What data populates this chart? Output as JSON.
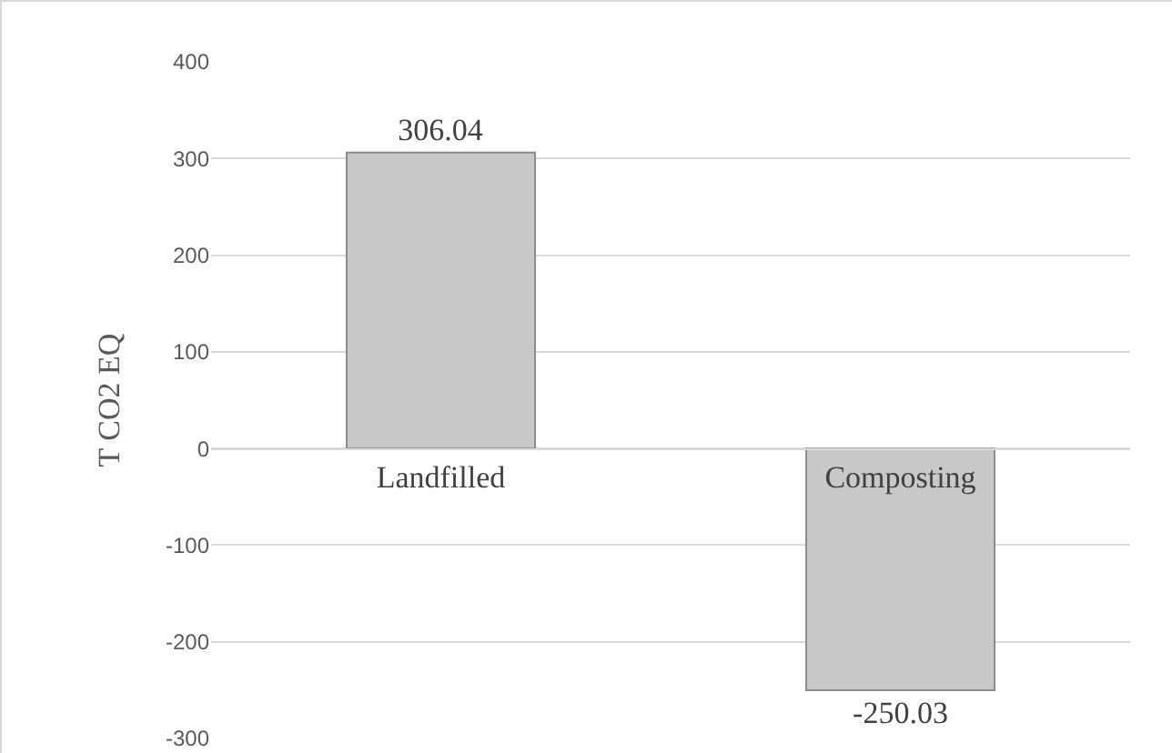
{
  "chart_data": {
    "type": "bar",
    "ylabel": "T CO2 EQ",
    "categories": [
      "Landfilled",
      "Composting"
    ],
    "values": [
      306.04,
      -250.03
    ],
    "color": "#c8c8c8",
    "data_labels": true,
    "ylim": [
      -300,
      400
    ],
    "yticks": [
      -300,
      -200,
      -100,
      0,
      100,
      200,
      300,
      400
    ],
    "grid": "y",
    "legend": false
  }
}
